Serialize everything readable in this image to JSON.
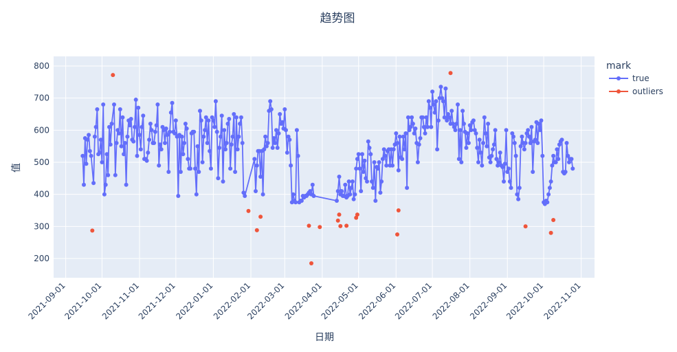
{
  "chart_data": {
    "type": "line",
    "title": "趋势图",
    "xlabel": "日期",
    "ylabel": "值",
    "x_range": [
      "2021-08-22",
      "2022-11-12"
    ],
    "ylim": [
      140,
      830
    ],
    "x_ticks": [
      "2021-09-01",
      "2021-10-01",
      "2021-11-01",
      "2021-12-01",
      "2022-01-01",
      "2022-02-01",
      "2022-03-01",
      "2022-04-01",
      "2022-05-01",
      "2022-06-01",
      "2022-07-01",
      "2022-08-01",
      "2022-09-01",
      "2022-10-01",
      "2022-11-01"
    ],
    "y_ticks": [
      200,
      300,
      400,
      500,
      600,
      700,
      800
    ],
    "grid": true,
    "legend": {
      "title": "mark",
      "placement": "right"
    },
    "series": [
      {
        "name": "true",
        "color": "#636efa",
        "mode": "lines+markers",
        "x": [
          "2021-09-15",
          "2021-09-16",
          "2021-09-17",
          "2021-09-18",
          "2021-09-19",
          "2021-09-20",
          "2021-09-21",
          "2021-09-22",
          "2021-09-24",
          "2021-09-25",
          "2021-09-26",
          "2021-09-27",
          "2021-09-28",
          "2021-09-29",
          "2021-09-30",
          "2021-10-01",
          "2021-10-02",
          "2021-10-03",
          "2021-10-04",
          "2021-10-05",
          "2021-10-06",
          "2021-10-07",
          "2021-10-08",
          "2021-10-09",
          "2021-10-11",
          "2021-10-12",
          "2021-10-13",
          "2021-10-14",
          "2021-10-15",
          "2021-10-16",
          "2021-10-17",
          "2021-10-18",
          "2021-10-19",
          "2021-10-20",
          "2021-10-21",
          "2021-10-22",
          "2021-10-23",
          "2021-10-24",
          "2021-10-25",
          "2021-10-26",
          "2021-10-27",
          "2021-10-28",
          "2021-10-29",
          "2021-10-30",
          "2021-10-31",
          "2021-11-01",
          "2021-11-02",
          "2021-11-03",
          "2021-11-04",
          "2021-11-05",
          "2021-11-06",
          "2021-11-07",
          "2021-11-08",
          "2021-11-09",
          "2021-11-10",
          "2021-11-11",
          "2021-11-12",
          "2021-11-13",
          "2021-11-14",
          "2021-11-15",
          "2021-11-16",
          "2021-11-17",
          "2021-11-18",
          "2021-11-19",
          "2021-11-20",
          "2021-11-21",
          "2021-11-22",
          "2021-11-23",
          "2021-11-24",
          "2021-11-25",
          "2021-11-26",
          "2021-11-27",
          "2021-11-28",
          "2021-11-29",
          "2021-11-30",
          "2021-12-01",
          "2021-12-02",
          "2021-12-03",
          "2021-12-04",
          "2021-12-05",
          "2021-12-06",
          "2021-12-07",
          "2021-12-08",
          "2021-12-09",
          "2021-12-10",
          "2021-12-11",
          "2021-12-12",
          "2021-12-13",
          "2021-12-14",
          "2021-12-15",
          "2021-12-16",
          "2021-12-17",
          "2021-12-18",
          "2021-12-19",
          "2021-12-20",
          "2021-12-21",
          "2021-12-22",
          "2021-12-23",
          "2021-12-24",
          "2021-12-25",
          "2021-12-26",
          "2021-12-27",
          "2021-12-28",
          "2021-12-29",
          "2021-12-30",
          "2021-12-31",
          "2022-01-01",
          "2022-01-02",
          "2022-01-03",
          "2022-01-04",
          "2022-01-05",
          "2022-01-06",
          "2022-01-07",
          "2022-01-08",
          "2022-01-09",
          "2022-01-10",
          "2022-01-11",
          "2022-01-12",
          "2022-01-13",
          "2022-01-14",
          "2022-01-15",
          "2022-01-16",
          "2022-01-17",
          "2022-01-18",
          "2022-01-19",
          "2022-01-20",
          "2022-01-21",
          "2022-01-22",
          "2022-01-23",
          "2022-01-24",
          "2022-01-25",
          "2022-01-26",
          "2022-01-27",
          "2022-02-04",
          "2022-02-05",
          "2022-02-06",
          "2022-02-07",
          "2022-02-08",
          "2022-02-09",
          "2022-02-10",
          "2022-02-11",
          "2022-02-12",
          "2022-02-13",
          "2022-02-14",
          "2022-02-15",
          "2022-02-16",
          "2022-02-17",
          "2022-02-18",
          "2022-02-19",
          "2022-02-20",
          "2022-02-21",
          "2022-02-22",
          "2022-02-23",
          "2022-02-24",
          "2022-02-25",
          "2022-02-26",
          "2022-02-27",
          "2022-02-28",
          "2022-03-01",
          "2022-03-02",
          "2022-03-03",
          "2022-03-04",
          "2022-03-05",
          "2022-03-06",
          "2022-03-07",
          "2022-03-08",
          "2022-03-09",
          "2022-03-10",
          "2022-03-11",
          "2022-03-12",
          "2022-03-13",
          "2022-03-14",
          "2022-03-15",
          "2022-03-16",
          "2022-03-17",
          "2022-03-18",
          "2022-03-19",
          "2022-03-20",
          "2022-03-21",
          "2022-03-22",
          "2022-03-23",
          "2022-03-24",
          "2022-03-25",
          "2022-04-13",
          "2022-04-14",
          "2022-04-15",
          "2022-04-16",
          "2022-04-17",
          "2022-04-18",
          "2022-04-19",
          "2022-04-20",
          "2022-04-21",
          "2022-04-22",
          "2022-04-23",
          "2022-04-24",
          "2022-04-25",
          "2022-04-26",
          "2022-04-27",
          "2022-04-28",
          "2022-04-29",
          "2022-04-30",
          "2022-05-01",
          "2022-05-02",
          "2022-05-03",
          "2022-05-04",
          "2022-05-05",
          "2022-05-06",
          "2022-05-07",
          "2022-05-08",
          "2022-05-09",
          "2022-05-10",
          "2022-05-11",
          "2022-05-12",
          "2022-05-13",
          "2022-05-14",
          "2022-05-15",
          "2022-05-16",
          "2022-05-17",
          "2022-05-18",
          "2022-05-19",
          "2022-05-20",
          "2022-05-21",
          "2022-05-22",
          "2022-05-23",
          "2022-05-24",
          "2022-05-25",
          "2022-05-26",
          "2022-05-27",
          "2022-05-28",
          "2022-05-29",
          "2022-05-30",
          "2022-05-31",
          "2022-06-01",
          "2022-06-02",
          "2022-06-03",
          "2022-06-04",
          "2022-06-05",
          "2022-06-06",
          "2022-06-07",
          "2022-06-08",
          "2022-06-09",
          "2022-06-10",
          "2022-06-11",
          "2022-06-12",
          "2022-06-13",
          "2022-06-14",
          "2022-06-15",
          "2022-06-16",
          "2022-06-17",
          "2022-06-18",
          "2022-06-19",
          "2022-06-20",
          "2022-06-21",
          "2022-06-22",
          "2022-06-23",
          "2022-06-24",
          "2022-06-25",
          "2022-06-26",
          "2022-06-27",
          "2022-06-28",
          "2022-06-29",
          "2022-06-30",
          "2022-07-01",
          "2022-07-02",
          "2022-07-03",
          "2022-07-04",
          "2022-07-05",
          "2022-07-06",
          "2022-07-07",
          "2022-07-08",
          "2022-07-09",
          "2022-07-10",
          "2022-07-11",
          "2022-07-12",
          "2022-07-13",
          "2022-07-14",
          "2022-07-15",
          "2022-07-16",
          "2022-07-17",
          "2022-07-18",
          "2022-07-19",
          "2022-07-20",
          "2022-07-21",
          "2022-07-22",
          "2022-07-23",
          "2022-07-24",
          "2022-07-25",
          "2022-07-26",
          "2022-07-27",
          "2022-07-28",
          "2022-07-29",
          "2022-07-30",
          "2022-07-31",
          "2022-08-01",
          "2022-08-02",
          "2022-08-03",
          "2022-08-04",
          "2022-08-05",
          "2022-08-06",
          "2022-08-07",
          "2022-08-08",
          "2022-08-09",
          "2022-08-10",
          "2022-08-11",
          "2022-08-12",
          "2022-08-13",
          "2022-08-14",
          "2022-08-15",
          "2022-08-16",
          "2022-08-17",
          "2022-08-18",
          "2022-08-19",
          "2022-08-20",
          "2022-08-21",
          "2022-08-22",
          "2022-08-23",
          "2022-08-24",
          "2022-08-25",
          "2022-08-26",
          "2022-08-27",
          "2022-08-28",
          "2022-08-29",
          "2022-08-30",
          "2022-08-31",
          "2022-09-01",
          "2022-09-02",
          "2022-09-03",
          "2022-09-04",
          "2022-09-05",
          "2022-09-06",
          "2022-09-07",
          "2022-09-08",
          "2022-09-09",
          "2022-09-10",
          "2022-09-11",
          "2022-09-12",
          "2022-09-13",
          "2022-09-14",
          "2022-09-15",
          "2022-09-16",
          "2022-09-17",
          "2022-09-18",
          "2022-09-19",
          "2022-09-20",
          "2022-09-21",
          "2022-09-22",
          "2022-09-23",
          "2022-09-24",
          "2022-09-25",
          "2022-09-26",
          "2022-09-27",
          "2022-09-28",
          "2022-09-29",
          "2022-09-30",
          "2022-10-01",
          "2022-10-02",
          "2022-10-03",
          "2022-10-04",
          "2022-10-05",
          "2022-10-06",
          "2022-10-07",
          "2022-10-08",
          "2022-10-09",
          "2022-10-10",
          "2022-10-11",
          "2022-10-12",
          "2022-10-13",
          "2022-10-14",
          "2022-10-15",
          "2022-10-16",
          "2022-10-17",
          "2022-10-18",
          "2022-10-19",
          "2022-10-20",
          "2022-10-21",
          "2022-10-22",
          "2022-10-23",
          "2022-10-24",
          "2022-10-25"
        ],
        "y": [
          520,
          430,
          575,
          495,
          570,
          585,
          535,
          520,
          435,
          580,
          610,
          665,
          525,
          530,
          570,
          500,
          680,
          400,
          430,
          525,
          460,
          610,
          555,
          620,
          680,
          460,
          560,
          600,
          590,
          665,
          550,
          640,
          525,
          560,
          430,
          580,
          630,
          615,
          635,
          570,
          565,
          610,
          695,
          520,
          670,
          585,
          540,
          610,
          645,
          510,
          510,
          505,
          530,
          570,
          620,
          600,
          560,
          560,
          595,
          615,
          680,
          490,
          555,
          540,
          610,
          600,
          560,
          605,
          585,
          470,
          595,
          655,
          685,
          595,
          590,
          630,
          580,
          395,
          585,
          470,
          580,
          525,
          560,
          620,
          605,
          510,
          480,
          480,
          590,
          595,
          595,
          480,
          400,
          550,
          470,
          660,
          630,
          500,
          580,
          600,
          640,
          560,
          630,
          535,
          480,
          640,
          630,
          610,
          690,
          595,
          450,
          545,
          580,
          645,
          440,
          600,
          540,
          560,
          620,
          635,
          480,
          555,
          580,
          650,
          470,
          640,
          540,
          580,
          620,
          640,
          560,
          405,
          395,
          510,
          410,
          490,
          535,
          535,
          455,
          535,
          400,
          540,
          580,
          550,
          560,
          660,
          690,
          665,
          545,
          575,
          560,
          600,
          545,
          590,
          650,
          620,
          625,
          605,
          665,
          600,
          530,
          580,
          570,
          490,
          375,
          400,
          380,
          375,
          600,
          520,
          375,
          380,
          380,
          395,
          390,
          395,
          395,
          400,
          405,
          410,
          400,
          430,
          395,
          380,
          410,
          455,
          400,
          410,
          395,
          395,
          430,
          390,
          395,
          440,
          400,
          420,
          440,
          385,
          400,
          480,
          510,
          525,
          480,
          410,
          525,
          470,
          505,
          450,
          440,
          565,
          545,
          525,
          440,
          420,
          500,
          380,
          485,
          480,
          500,
          405,
          440,
          510,
          540,
          520,
          490,
          535,
          540,
          490,
          540,
          490,
          540,
          555,
          590,
          560,
          475,
          580,
          515,
          510,
          580,
          540,
          590,
          420,
          640,
          600,
          610,
          640,
          620,
          590,
          605,
          560,
          500,
          555,
          575,
          640,
          640,
          610,
          590,
          640,
          610,
          690,
          670,
          610,
          720,
          680,
          655,
          690,
          540,
          630,
          700,
          735,
          700,
          690,
          640,
          730,
          630,
          650,
          640,
          620,
          660,
          620,
          610,
          600,
          620,
          680,
          510,
          600,
          500,
          660,
          620,
          595,
          545,
          590,
          560,
          615,
          600,
          625,
          630,
          600,
          590,
          545,
          500,
          570,
          530,
          490,
          560,
          640,
          590,
          550,
          620,
          515,
          500,
          520,
          540,
          555,
          600,
          510,
          490,
          500,
          530,
          490,
          485,
          440,
          495,
          600,
          470,
          480,
          440,
          420,
          590,
          580,
          560,
          520,
          400,
          385,
          420,
          550,
          580,
          560,
          540,
          560,
          590,
          600,
          580,
          560,
          610,
          470,
          565,
          570,
          625,
          560,
          620,
          600,
          630,
          520,
          375,
          370,
          380,
          375,
          400,
          420,
          440,
          490,
          520,
          500,
          500,
          540,
          510,
          555,
          565,
          570,
          470,
          465,
          470,
          560,
          520,
          500,
          510,
          510,
          480
        ]
      },
      {
        "name": "outliers",
        "color": "#ef553b",
        "mode": "markers",
        "x": [
          "2021-09-23",
          "2021-10-10",
          "2022-01-30",
          "2022-02-06",
          "2022-02-09",
          "2022-03-21",
          "2022-03-23",
          "2022-03-30",
          "2022-04-14",
          "2022-04-15",
          "2022-04-16",
          "2022-04-21",
          "2022-04-29",
          "2022-04-30",
          "2022-06-02",
          "2022-06-03",
          "2022-07-16",
          "2022-09-16",
          "2022-10-07",
          "2022-10-09"
        ],
        "y": [
          287,
          772,
          348,
          288,
          330,
          302,
          185,
          298,
          318,
          337,
          301,
          302,
          327,
          337,
          275,
          350,
          778,
          300,
          280,
          320
        ]
      }
    ]
  }
}
